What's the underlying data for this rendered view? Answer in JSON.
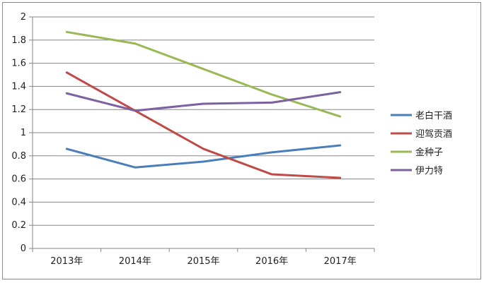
{
  "chart_data": {
    "type": "line",
    "title": "",
    "xlabel": "",
    "ylabel": "",
    "categories": [
      "2013年",
      "2014年",
      "2015年",
      "2016年",
      "2017年"
    ],
    "ylim": [
      0,
      2
    ],
    "yticks": [
      "0",
      "0.2",
      "0.4",
      "0.6",
      "0.8",
      "1",
      "1.2",
      "1.4",
      "1.6",
      "1.8",
      "2"
    ],
    "grid": true,
    "legend_position": "right",
    "series": [
      {
        "name": "老白干酒",
        "color": "#4a7ebb",
        "values": [
          0.86,
          0.7,
          0.75,
          0.83,
          0.89
        ]
      },
      {
        "name": "迎驾贡酒",
        "color": "#be4b48",
        "values": [
          1.52,
          1.19,
          0.86,
          0.64,
          0.61
        ]
      },
      {
        "name": "金种子",
        "color": "#98b954",
        "values": [
          1.87,
          1.77,
          1.55,
          1.33,
          1.14
        ]
      },
      {
        "name": "伊力特",
        "color": "#7d60a0",
        "values": [
          1.34,
          1.19,
          1.25,
          1.26,
          1.35
        ]
      }
    ]
  }
}
